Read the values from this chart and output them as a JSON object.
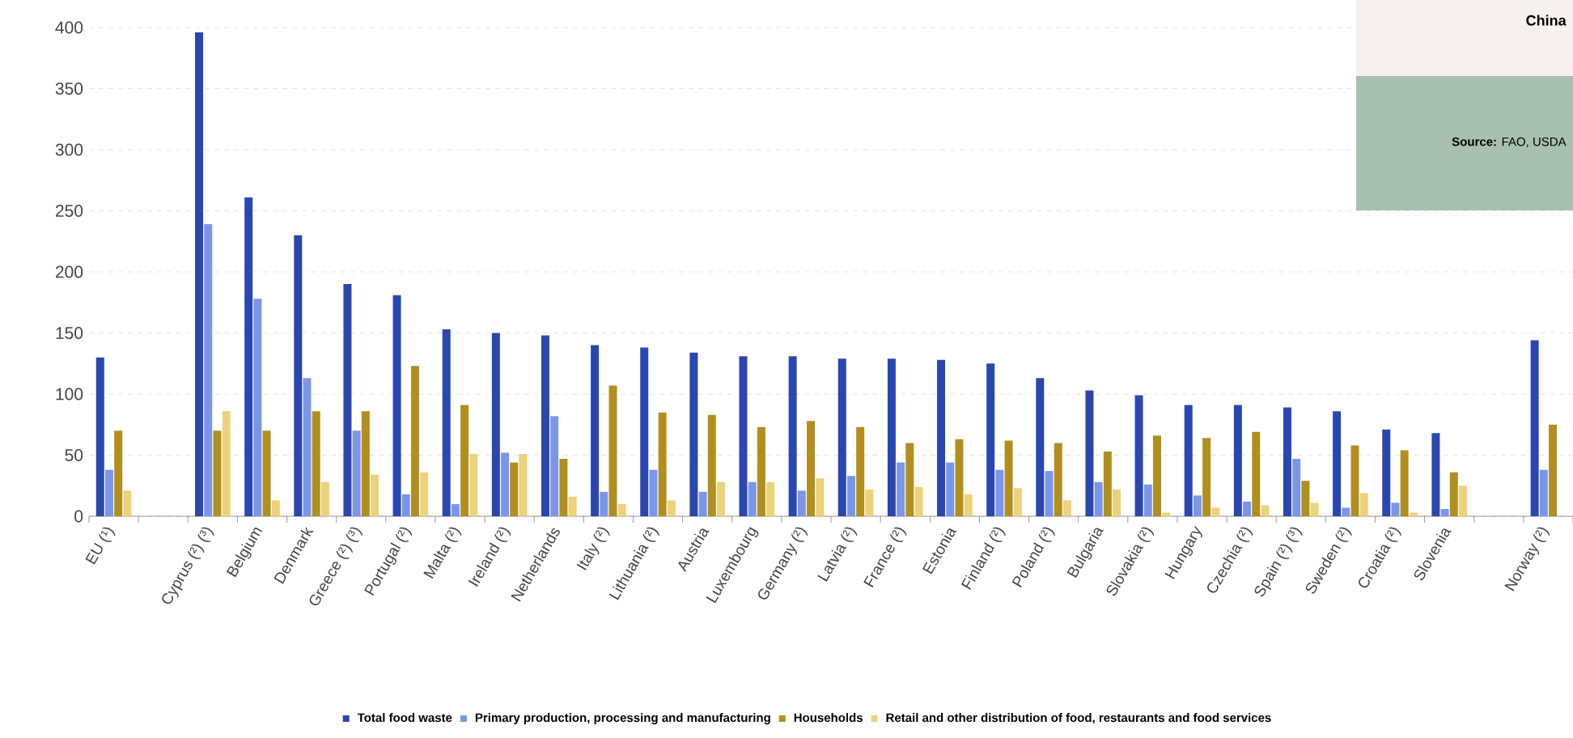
{
  "chart_data": {
    "type": "bar",
    "categories": [
      "EU (¹)",
      null,
      "Cyprus (²) (³)",
      "Belgium",
      "Denmark",
      "Greece (²) (³)",
      "Portugal (²)",
      "Malta (²)",
      "Ireland (²)",
      "Netherlands",
      "Italy (²)",
      "Lithuania (²)",
      "Austria",
      "Luxembourg",
      "Germany (²)",
      "Latvia (²)",
      "France (²)",
      "Estonia",
      "Finland (²)",
      "Poland (²)",
      "Bulgaria",
      "Slovakia (²)",
      "Hungary",
      "Czechia (²)",
      "Spain (²) (³)",
      "Sweden (²)",
      "Croatia (²)",
      "Slovenia",
      null,
      "Norway (²)"
    ],
    "series": [
      {
        "name": "Total food waste",
        "color": "#2a46b0",
        "values": [
          130,
          null,
          396,
          261,
          230,
          190,
          181,
          153,
          150,
          148,
          140,
          138,
          134,
          131,
          131,
          129,
          129,
          128,
          125,
          113,
          103,
          99,
          91,
          91,
          89,
          86,
          71,
          68,
          null,
          144
        ]
      },
      {
        "name": "Primary production, processing and manufacturing",
        "color": "#7b96e8",
        "values": [
          38,
          null,
          239,
          178,
          113,
          70,
          18,
          10,
          52,
          82,
          20,
          38,
          20,
          28,
          21,
          33,
          44,
          44,
          38,
          37,
          28,
          26,
          17,
          12,
          47,
          7,
          11,
          6,
          null,
          38
        ]
      },
      {
        "name": "Households",
        "color": "#b08f1f",
        "values": [
          70,
          null,
          70,
          70,
          86,
          86,
          123,
          91,
          44,
          47,
          107,
          85,
          83,
          73,
          78,
          73,
          60,
          63,
          62,
          60,
          53,
          66,
          64,
          69,
          29,
          58,
          54,
          36,
          null,
          75
        ]
      },
      {
        "name": "Retail and other distribution of food, restaurants and food services",
        "color": "#ecd27a",
        "values": [
          21,
          null,
          86,
          13,
          28,
          34,
          36,
          51,
          51,
          16,
          10,
          13,
          28,
          28,
          31,
          22,
          24,
          18,
          23,
          13,
          22,
          3,
          7,
          9,
          11,
          19,
          3,
          25,
          null,
          null
        ]
      }
    ],
    "ylim": [
      0,
      400
    ],
    "yticks": [
      0,
      50,
      100,
      150,
      200,
      250,
      300,
      350,
      400
    ],
    "grid": "y",
    "legend": "bottom",
    "annotations": [
      "China",
      "**Source:** FAO, USDA"
    ]
  }
}
